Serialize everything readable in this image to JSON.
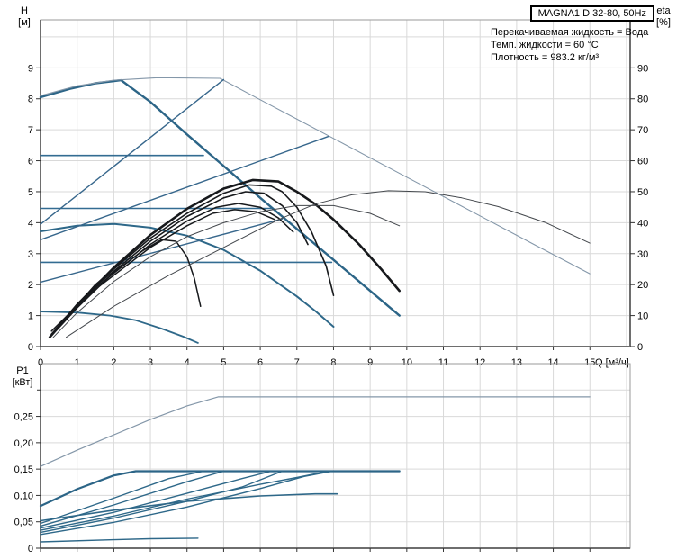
{
  "header": {
    "title_box": "MAGNA1 D 32-80, 50Hz",
    "info_lines": [
      "Перекачиваемая жидкость = Вода",
      "Темп. жидкости = 60 °C",
      "Плотность = 983.2 кг/м³"
    ]
  },
  "axis_labels": {
    "h_left": [
      "H",
      "[м]"
    ],
    "eta_right": [
      "eta",
      "[%]"
    ],
    "p1_left": [
      "P1",
      "[кВт]"
    ],
    "q_bottom": "Q [м³/ч]"
  },
  "colors": {
    "curve_blue": "#2c6587",
    "curve_blue_light": "#35708f",
    "curve_gray_blue": "#8497a9",
    "curve_black": "#17191c",
    "curve_eta": "#43474c",
    "grid": "#d9d9d9",
    "frame": "#9a9a9a",
    "axis": "#6e6e6e",
    "text": "#000000"
  },
  "chart_data": [
    {
      "id": "qh",
      "type": "line",
      "title": "Q-H pump curves, single and parallel operation",
      "xlabel": "Q [м³/ч]",
      "ylabel": "H [м]",
      "y2label": "eta [%]",
      "x_range": [
        0,
        16.1
      ],
      "ylim": [
        0,
        10.55
      ],
      "y2lim": [
        0,
        105.5
      ],
      "x_ticks": [
        0,
        1,
        2,
        3,
        4,
        5,
        6,
        7,
        8,
        9,
        10,
        11,
        12,
        13,
        14,
        15
      ],
      "y_ticks": [
        0,
        1,
        2,
        3,
        4,
        5,
        6,
        7,
        8,
        9
      ],
      "y2_ticks": [
        0,
        10,
        20,
        30,
        40,
        50,
        60,
        70,
        80,
        90
      ],
      "grid": true,
      "legend": "none",
      "series": [
        {
          "name": "max-curve-single-pump",
          "color": "#2c6587",
          "width": 2.4,
          "axis": "left",
          "points": [
            [
              0,
              8.05
            ],
            [
              0.8,
              8.32
            ],
            [
              1.5,
              8.5
            ],
            [
              2.2,
              8.6
            ],
            [
              3,
              7.9
            ],
            [
              4,
              6.85
            ],
            [
              5,
              5.83
            ],
            [
              6,
              4.8
            ],
            [
              7,
              3.8
            ],
            [
              8,
              2.8
            ],
            [
              9,
              1.8
            ],
            [
              9.8,
              1.0
            ]
          ]
        },
        {
          "name": "max-curve-parallel",
          "color": "#8497a9",
          "width": 1.1,
          "axis": "left",
          "points": [
            [
              0,
              8.1
            ],
            [
              1,
              8.42
            ],
            [
              2,
              8.6
            ],
            [
              3.2,
              8.68
            ],
            [
              4.9,
              8.66
            ],
            [
              6,
              7.97
            ],
            [
              8,
              6.72
            ],
            [
              10,
              5.47
            ],
            [
              12,
              4.22
            ],
            [
              13.5,
              3.28
            ],
            [
              15,
              2.35
            ]
          ]
        },
        {
          "name": "speed-ii-curve",
          "color": "#2e6889",
          "width": 2.0,
          "axis": "left",
          "points": [
            [
              0,
              3.72
            ],
            [
              1,
              3.9
            ],
            [
              2,
              3.96
            ],
            [
              3,
              3.84
            ],
            [
              4,
              3.58
            ],
            [
              5,
              3.12
            ],
            [
              6,
              2.45
            ],
            [
              7,
              1.62
            ],
            [
              7.5,
              1.15
            ],
            [
              8,
              0.64
            ]
          ]
        },
        {
          "name": "speed-i-curve",
          "color": "#2e6889",
          "width": 1.8,
          "axis": "left",
          "points": [
            [
              0,
              1.13
            ],
            [
              1,
              1.1
            ],
            [
              1.9,
              1.0
            ],
            [
              2.6,
              0.85
            ],
            [
              3.3,
              0.58
            ],
            [
              3.9,
              0.32
            ],
            [
              4.3,
              0.12
            ]
          ]
        },
        {
          "name": "const-pressure-curve-1",
          "color": "#336c92",
          "width": 1.6,
          "axis": "left",
          "points": [
            [
              0,
              6.17
            ],
            [
              4.45,
              6.17
            ]
          ]
        },
        {
          "name": "const-pressure-curve-2",
          "color": "#336c92",
          "width": 1.6,
          "axis": "left",
          "points": [
            [
              0,
              4.46
            ],
            [
              6.3,
              4.46
            ]
          ]
        },
        {
          "name": "const-pressure-curve-3",
          "color": "#336c92",
          "width": 1.6,
          "axis": "left",
          "points": [
            [
              0,
              2.72
            ],
            [
              7.95,
              2.72
            ]
          ]
        },
        {
          "name": "prop-pressure-curve-1",
          "color": "#37678c",
          "width": 1.4,
          "axis": "left",
          "points": [
            [
              0,
              3.95
            ],
            [
              5.0,
              8.62
            ]
          ]
        },
        {
          "name": "prop-pressure-curve-2",
          "color": "#37678c",
          "width": 1.4,
          "axis": "left",
          "points": [
            [
              0,
              3.45
            ],
            [
              7.85,
              6.78
            ]
          ]
        },
        {
          "name": "prop-pressure-curve-3",
          "color": "#37678c",
          "width": 1.4,
          "axis": "left",
          "points": [
            [
              0,
              2.08
            ],
            [
              6.6,
              4.12
            ]
          ]
        },
        {
          "name": "parallel-curve-max",
          "color": "#17191c",
          "width": 2.6,
          "axis": "left",
          "points": [
            [
              0.25,
              0.3
            ],
            [
              1,
              1.35
            ],
            [
              2,
              2.55
            ],
            [
              3,
              3.6
            ],
            [
              4,
              4.45
            ],
            [
              5,
              5.1
            ],
            [
              5.8,
              5.38
            ],
            [
              6.5,
              5.33
            ],
            [
              7,
              5.0
            ],
            [
              7.5,
              4.6
            ],
            [
              8,
              4.1
            ],
            [
              8.7,
              3.3
            ],
            [
              9.3,
              2.5
            ],
            [
              9.8,
              1.8
            ]
          ]
        },
        {
          "name": "parallel-curve-2",
          "color": "#17191c",
          "width": 1.6,
          "axis": "left",
          "points": [
            [
              0.3,
              0.4
            ],
            [
              1.5,
              2.0
            ],
            [
              3,
              3.5
            ],
            [
              4,
              4.3
            ],
            [
              5,
              4.95
            ],
            [
              5.7,
              5.22
            ],
            [
              6.3,
              5.18
            ],
            [
              6.6,
              5.0
            ],
            [
              7.0,
              4.5
            ],
            [
              7.4,
              3.7
            ],
            [
              7.8,
              2.6
            ],
            [
              8.0,
              1.65
            ]
          ]
        },
        {
          "name": "parallel-curve-3",
          "color": "#17191c",
          "width": 1.6,
          "axis": "left",
          "points": [
            [
              0.35,
              0.45
            ],
            [
              1.5,
              1.95
            ],
            [
              3,
              3.4
            ],
            [
              4,
              4.2
            ],
            [
              5,
              4.8
            ],
            [
              5.6,
              5.0
            ],
            [
              6.1,
              4.95
            ],
            [
              6.6,
              4.55
            ],
            [
              7.0,
              4.0
            ],
            [
              7.3,
              3.3
            ]
          ]
        },
        {
          "name": "parallel-curve-4",
          "color": "#17191c",
          "width": 1.5,
          "axis": "left",
          "points": [
            [
              0.3,
              0.5
            ],
            [
              1.5,
              1.9
            ],
            [
              3,
              3.3
            ],
            [
              4,
              4.05
            ],
            [
              4.8,
              4.5
            ],
            [
              5.4,
              4.62
            ],
            [
              6,
              4.5
            ],
            [
              6.5,
              4.15
            ],
            [
              6.9,
              3.7
            ]
          ]
        },
        {
          "name": "parallel-curve-5",
          "color": "#17191c",
          "width": 1.5,
          "axis": "left",
          "points": [
            [
              0.4,
              0.55
            ],
            [
              1.5,
              1.85
            ],
            [
              3,
              3.2
            ],
            [
              4,
              3.9
            ],
            [
              4.7,
              4.3
            ],
            [
              5.3,
              4.42
            ],
            [
              5.9,
              4.35
            ],
            [
              6.4,
              4.1
            ]
          ]
        },
        {
          "name": "parallel-curve-low",
          "color": "#17191c",
          "width": 1.5,
          "axis": "left",
          "points": [
            [
              0.3,
              0.35
            ],
            [
              1,
              1.25
            ],
            [
              2,
              2.4
            ],
            [
              2.8,
              3.1
            ],
            [
              3.3,
              3.45
            ],
            [
              3.7,
              3.4
            ],
            [
              4.0,
              2.9
            ],
            [
              4.2,
              2.2
            ],
            [
              4.37,
              1.3
            ]
          ]
        },
        {
          "name": "eta-curve-single",
          "color": "#43474c",
          "width": 1.0,
          "axis": "right",
          "points": [
            [
              0.35,
              3
            ],
            [
              1,
              11
            ],
            [
              2,
              21
            ],
            [
              3,
              29
            ],
            [
              4,
              35.5
            ],
            [
              5,
              40
            ],
            [
              6,
              43.5
            ],
            [
              7,
              45.5
            ],
            [
              8,
              45.5
            ],
            [
              9,
              43
            ],
            [
              9.8,
              39
            ]
          ]
        },
        {
          "name": "eta-curve-parallel",
          "color": "#43474c",
          "width": 1.0,
          "axis": "right",
          "points": [
            [
              0.7,
              3
            ],
            [
              2,
              13
            ],
            [
              3.5,
              23
            ],
            [
              5,
              32
            ],
            [
              6.5,
              41
            ],
            [
              7.5,
              46
            ],
            [
              8.5,
              49
            ],
            [
              9.5,
              50.3
            ],
            [
              10.5,
              50
            ],
            [
              11.5,
              48
            ],
            [
              12.5,
              45.2
            ],
            [
              13.8,
              40
            ],
            [
              15,
              33.4
            ]
          ]
        }
      ]
    },
    {
      "id": "p1",
      "type": "line",
      "title": "P1 power curves",
      "xlabel": "",
      "ylabel": "P1 [кВт]",
      "x_range": [
        0,
        16.1
      ],
      "ylim": [
        0,
        0.35
      ],
      "x_ticks": [
        0,
        1,
        2,
        3,
        4,
        5,
        6,
        7,
        8,
        9,
        10,
        11,
        12,
        13,
        14,
        15
      ],
      "x_tick_labels_hidden": true,
      "y_ticks": [
        {
          "v": 0,
          "label": "0"
        },
        {
          "v": 0.05,
          "label": "0,05"
        },
        {
          "v": 0.1,
          "label": "0,10"
        },
        {
          "v": 0.15,
          "label": "0,15"
        },
        {
          "v": 0.2,
          "label": "0,20"
        },
        {
          "v": 0.25,
          "label": "0,25"
        }
      ],
      "y_minor_ticks": [
        0.3
      ],
      "grid": true,
      "legend": "none",
      "series": [
        {
          "name": "p1-max-parallel",
          "color": "#8497a9",
          "width": 1.2,
          "points": [
            [
              0,
              0.155
            ],
            [
              1,
              0.186
            ],
            [
              2,
              0.215
            ],
            [
              3,
              0.244
            ],
            [
              4,
              0.27
            ],
            [
              4.85,
              0.287
            ],
            [
              15,
              0.287
            ]
          ]
        },
        {
          "name": "p1-max-single",
          "color": "#2c6587",
          "width": 2.2,
          "points": [
            [
              0,
              0.08
            ],
            [
              1,
              0.112
            ],
            [
              2,
              0.138
            ],
            [
              2.6,
              0.146
            ],
            [
              9.8,
              0.146
            ]
          ]
        },
        {
          "name": "p1-const-pressure-1",
          "color": "#2e6889",
          "width": 1.4,
          "points": [
            [
              0,
              0.047
            ],
            [
              2,
              0.095
            ],
            [
              3.5,
              0.132
            ],
            [
              4.45,
              0.146
            ]
          ]
        },
        {
          "name": "p1-const-pressure-2",
          "color": "#2e6889",
          "width": 1.4,
          "points": [
            [
              0,
              0.038
            ],
            [
              2,
              0.068
            ],
            [
              4,
              0.104
            ],
            [
              5.5,
              0.132
            ],
            [
              6.3,
              0.146
            ]
          ]
        },
        {
          "name": "p1-const-pressure-3",
          "color": "#2e6889",
          "width": 1.4,
          "points": [
            [
              0,
              0.026
            ],
            [
              2,
              0.049
            ],
            [
              4,
              0.078
            ],
            [
              6,
              0.113
            ],
            [
              7.2,
              0.136
            ],
            [
              7.95,
              0.146
            ]
          ]
        },
        {
          "name": "p1-prop-pressure-1",
          "color": "#2e6889",
          "width": 1.4,
          "points": [
            [
              0,
              0.042
            ],
            [
              2,
              0.082
            ],
            [
              4,
              0.126
            ],
            [
              5.0,
              0.146
            ]
          ]
        },
        {
          "name": "p1-prop-pressure-2",
          "color": "#2e6889",
          "width": 1.4,
          "points": [
            [
              0,
              0.034
            ],
            [
              2,
              0.061
            ],
            [
              4,
              0.093
            ],
            [
              6,
              0.121
            ],
            [
              7,
              0.134
            ],
            [
              7.85,
              0.146
            ]
          ]
        },
        {
          "name": "p1-prop-pressure-3",
          "color": "#2e6889",
          "width": 1.4,
          "points": [
            [
              0,
              0.03
            ],
            [
              2,
              0.057
            ],
            [
              4,
              0.089
            ],
            [
              5.5,
              0.116
            ],
            [
              6.6,
              0.146
            ]
          ]
        },
        {
          "name": "p1-speed-ii",
          "color": "#2e6889",
          "width": 1.6,
          "points": [
            [
              0,
              0.052
            ],
            [
              2,
              0.072
            ],
            [
              4,
              0.089
            ],
            [
              6,
              0.099
            ],
            [
              7.5,
              0.103
            ],
            [
              8.1,
              0.103
            ]
          ]
        },
        {
          "name": "p1-speed-i",
          "color": "#2e6889",
          "width": 1.4,
          "points": [
            [
              0,
              0.012
            ],
            [
              2,
              0.016
            ],
            [
              3,
              0.018
            ],
            [
              4.3,
              0.019
            ]
          ]
        }
      ]
    }
  ]
}
